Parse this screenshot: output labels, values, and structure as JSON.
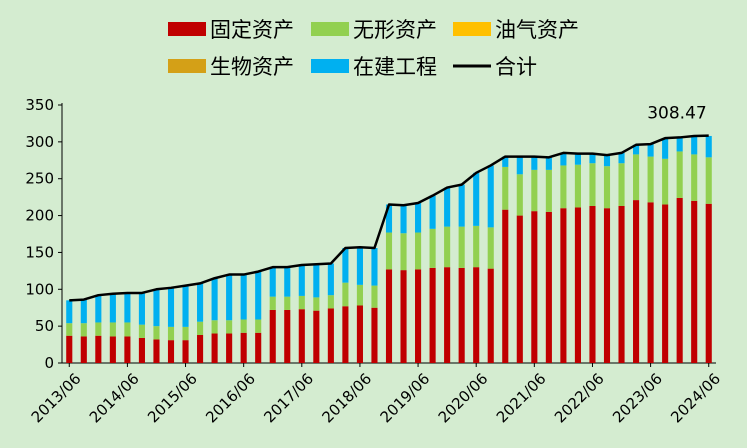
{
  "chart_data": {
    "type": "bar",
    "stacked": true,
    "x_tick_labels": [
      "2013/06",
      "2014/06",
      "2015/06",
      "2016/06",
      "2017/06",
      "2018/06",
      "2019/06",
      "2020/06",
      "2021/06",
      "2022/06",
      "2023/06",
      "2024/06"
    ],
    "ylim": [
      0,
      350
    ],
    "y_ticks": [
      0,
      50,
      100,
      150,
      200,
      250,
      300,
      350
    ],
    "grid": false,
    "legend_position": "top",
    "annotation": "308.47",
    "series": [
      {
        "name": "固定资产",
        "color": "#c00000",
        "values": [
          37,
          36,
          37,
          36,
          36,
          34,
          32,
          31,
          31,
          38,
          40,
          40,
          41,
          41,
          72,
          72,
          73,
          71,
          74,
          77,
          78,
          75,
          127,
          126,
          127,
          129,
          130,
          129,
          130,
          128,
          208,
          200,
          206,
          205,
          210,
          211,
          213,
          210,
          213,
          221,
          218,
          215,
          224,
          220,
          216
        ]
      },
      {
        "name": "无形资产",
        "color": "#92d050",
        "values": [
          17,
          18,
          18,
          19,
          19,
          18,
          18,
          18,
          18,
          18,
          18,
          18,
          18,
          18,
          18,
          18,
          18,
          18,
          18,
          32,
          28,
          30,
          50,
          50,
          50,
          53,
          55,
          56,
          56,
          56,
          58,
          56,
          56,
          57,
          58,
          58,
          58,
          57,
          58,
          62,
          62,
          62,
          63,
          63,
          63
        ]
      },
      {
        "name": "油气资产",
        "color": "#ffc000",
        "values": [
          0,
          0,
          0,
          0,
          0,
          0,
          0,
          0,
          0,
          0,
          0,
          0,
          0,
          0,
          0,
          0,
          0,
          0,
          0,
          0,
          0,
          0,
          0,
          0,
          0,
          0,
          0,
          0,
          0,
          0,
          0,
          0,
          0,
          0,
          0,
          0,
          0,
          0,
          0,
          0,
          0,
          0,
          0,
          0,
          0
        ]
      },
      {
        "name": "生物资产",
        "color": "#d4a017",
        "values": [
          0,
          0,
          0,
          0,
          0,
          0,
          0,
          0,
          0,
          0,
          0,
          0,
          0,
          0,
          0,
          0,
          0,
          0,
          0,
          0,
          0,
          0,
          0,
          0,
          0,
          0,
          0,
          0,
          0,
          0,
          0,
          0,
          0,
          0,
          0,
          0,
          0,
          0,
          0,
          0,
          0,
          0,
          0,
          0,
          0
        ]
      },
      {
        "name": "在建工程",
        "color": "#00b0f0",
        "values": [
          31,
          32,
          37,
          39,
          40,
          43,
          50,
          53,
          56,
          52,
          57,
          62,
          61,
          65,
          40,
          40,
          42,
          45,
          43,
          47,
          51,
          51,
          38,
          38,
          40,
          45,
          53,
          57,
          72,
          84,
          14,
          24,
          18,
          17,
          17,
          15,
          13,
          15,
          14,
          13,
          17,
          28,
          19,
          25,
          29
        ]
      }
    ],
    "total": {
      "name": "合计",
      "color": "#000000",
      "values": [
        85,
        86,
        92,
        94,
        95,
        95,
        100,
        102,
        105,
        108,
        115,
        120,
        120,
        124,
        130,
        130,
        133,
        134,
        135,
        156,
        157,
        156,
        215,
        214,
        217,
        227,
        238,
        242,
        258,
        268,
        280,
        280,
        280,
        279,
        285,
        284,
        284,
        282,
        285,
        296,
        297,
        305,
        306,
        308,
        308.47
      ]
    }
  }
}
